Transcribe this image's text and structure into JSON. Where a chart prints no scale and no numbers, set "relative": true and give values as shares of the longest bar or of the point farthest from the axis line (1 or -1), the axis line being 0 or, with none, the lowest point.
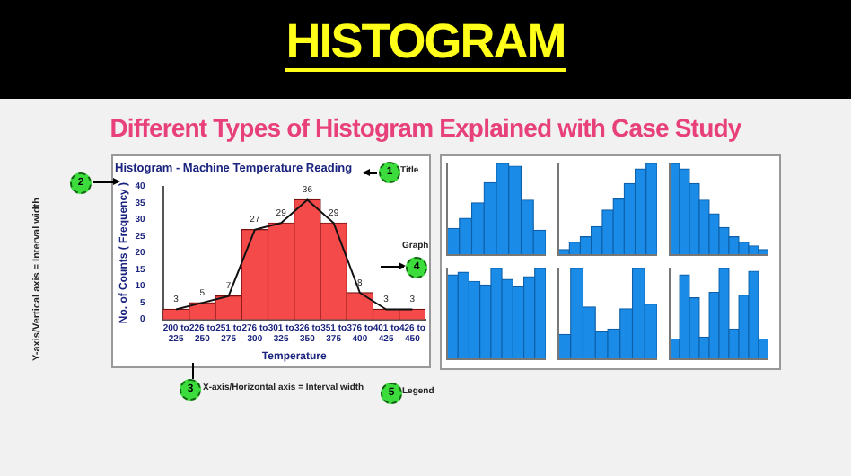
{
  "chart_data": [
    {
      "type": "other",
      "title": "HISTOGRAM",
      "subtitle": "Different Types of Histogram Explained with Case Study"
    },
    {
      "type": "bar",
      "title": "Histogram - Machine Temperature Reading",
      "xlabel": "Temperature",
      "ylabel": "No. of Counts ( Frequency )",
      "categories": [
        "200 to 225",
        "226 to 250",
        "251 to 275",
        "276 to 300",
        "301 to 325",
        "326 to 350",
        "351 to 375",
        "376 to 400",
        "401 to 425",
        "426 to 450"
      ],
      "series": [
        {
          "type": "bar",
          "color": "#f44a4a",
          "values": [
            3,
            5,
            7,
            27,
            29,
            36,
            29,
            8,
            3,
            3
          ],
          "value_labels": [
            "3",
            "5",
            "7",
            "27",
            "29",
            "36",
            "29",
            "8",
            "3",
            "3"
          ]
        },
        {
          "type": "line",
          "color": "#111111",
          "values": [
            3,
            5,
            7,
            27,
            29,
            36,
            29,
            8,
            3,
            3
          ]
        }
      ],
      "ylim": [
        0,
        40
      ],
      "yticks": [
        0,
        5,
        10,
        15,
        20,
        25,
        30,
        35,
        40
      ],
      "marker": "none",
      "annotations": [
        "1",
        "Title",
        "2",
        "Y-axis/Vertical axis = Interval width",
        "3",
        "X-axis/Horizontal axis = Interval width",
        "4",
        "Graph",
        "5",
        "Legend"
      ]
    },
    {
      "type": "bar",
      "relative": true,
      "color": "#1a8be6",
      "categories": [
        null,
        null,
        null,
        null,
        null,
        null,
        null,
        null
      ],
      "values": [
        0.29,
        0.4,
        0.57,
        0.79,
        1,
        0.97,
        0.6,
        0.27
      ]
    },
    {
      "type": "bar",
      "relative": true,
      "color": "#1a8be6",
      "categories": [
        null,
        null,
        null,
        null,
        null,
        null,
        null,
        null,
        null
      ],
      "values": [
        0.06,
        0.14,
        0.2,
        0.31,
        0.49,
        0.61,
        0.78,
        0.94,
        1
      ]
    },
    {
      "type": "bar",
      "relative": true,
      "color": "#1a8be6",
      "categories": [
        null,
        null,
        null,
        null,
        null,
        null,
        null,
        null,
        null,
        null
      ],
      "values": [
        1,
        0.94,
        0.78,
        0.6,
        0.45,
        0.3,
        0.2,
        0.14,
        0.1,
        0.06
      ]
    },
    {
      "type": "bar",
      "relative": true,
      "color": "#1a8be6",
      "categories": [
        null,
        null,
        null,
        null,
        null,
        null,
        null,
        null,
        null
      ],
      "values": [
        0.92,
        0.95,
        0.85,
        0.81,
        1,
        0.87,
        0.79,
        0.9,
        1
      ]
    },
    {
      "type": "bar",
      "relative": true,
      "color": "#1a8be6",
      "categories": [
        null,
        null,
        null,
        null,
        null,
        null,
        null,
        null
      ],
      "values": [
        0.27,
        1,
        0.57,
        0.3,
        0.33,
        0.55,
        1,
        0.6
      ]
    },
    {
      "type": "bar",
      "relative": true,
      "color": "#1a8be6",
      "categories": [
        null,
        null,
        null,
        null,
        null,
        null,
        null,
        null,
        null,
        null
      ],
      "values": [
        0.22,
        0.92,
        0.67,
        0.24,
        0.73,
        1,
        0.33,
        0.7,
        0.96,
        0.22
      ]
    }
  ]
}
